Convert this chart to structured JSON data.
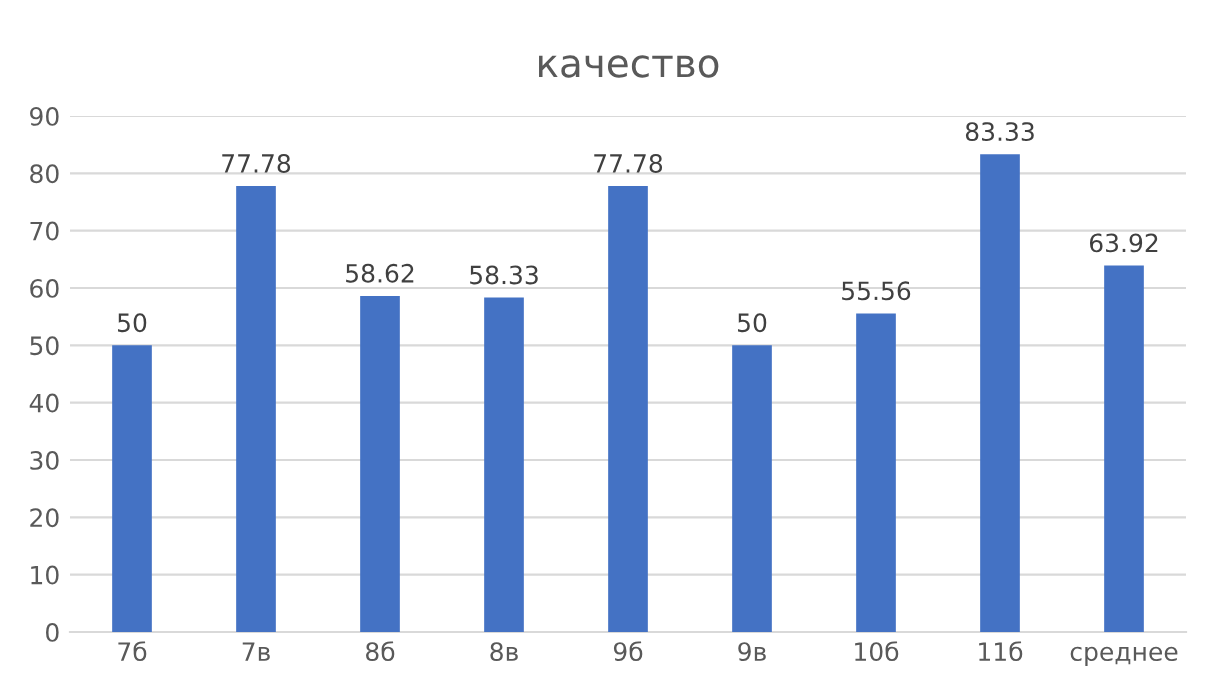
{
  "chart_data": {
    "type": "bar",
    "title": "качество",
    "categories": [
      "7б",
      "7в",
      "8б",
      "8в",
      "9б",
      "9в",
      "10б",
      "11б",
      "среднее"
    ],
    "values": [
      50,
      77.78,
      58.62,
      58.33,
      77.78,
      50,
      55.56,
      83.33,
      63.92
    ],
    "color": "#4472c4",
    "ylim": [
      0,
      90
    ],
    "yticks": [
      0,
      10,
      20,
      30,
      40,
      50,
      60,
      70,
      80,
      90
    ],
    "grid": "y",
    "data_labels": true
  }
}
